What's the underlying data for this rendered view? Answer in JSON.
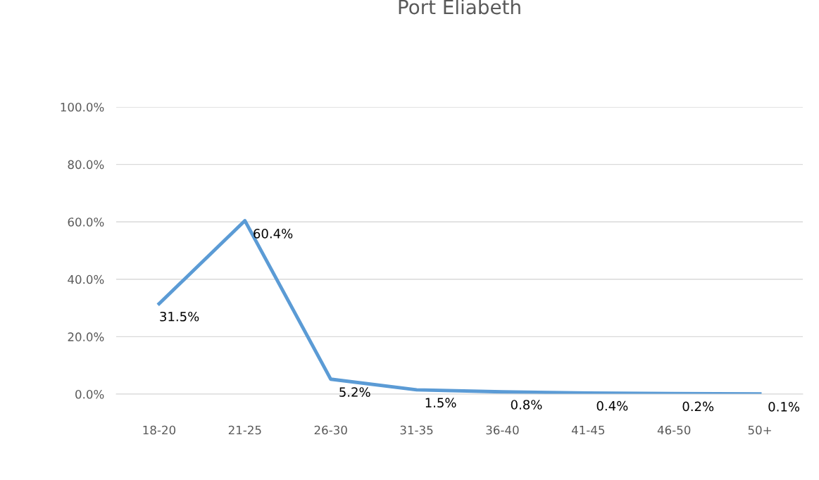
{
  "chart_data": {
    "type": "line",
    "title": "Port Eliabeth",
    "categories": [
      "18-20",
      "21-25",
      "26-30",
      "31-35",
      "36-40",
      "41-45",
      "46-50",
      "50+"
    ],
    "series": [
      {
        "color": "#5b9bd5",
        "values": [
          31.5,
          60.4,
          5.2,
          1.5,
          0.8,
          0.4,
          0.2,
          0.1
        ]
      }
    ],
    "value_labels": [
      "31.5%",
      "60.4%",
      "5.2%",
      "1.5%",
      "0.8%",
      "0.4%",
      "0.2%",
      "0.1%"
    ],
    "ylim": [
      0,
      100
    ],
    "yticks": [
      {
        "value": 0,
        "label": "0.0%"
      },
      {
        "value": 20,
        "label": "20.0%"
      },
      {
        "value": 40,
        "label": "40.0%"
      },
      {
        "value": 60,
        "label": "60.0%"
      },
      {
        "value": 80,
        "label": "80.0%"
      },
      {
        "value": 100,
        "label": "100.0%"
      }
    ],
    "grid": "y",
    "legend": false,
    "marker": "none",
    "line_style": "solid"
  }
}
